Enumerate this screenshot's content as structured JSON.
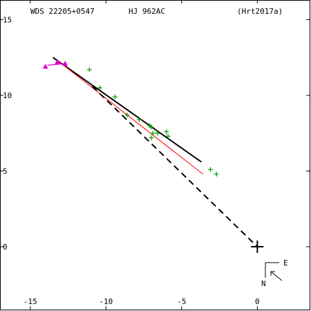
{
  "header": {
    "wds": "WDS 22205+0547",
    "pair": "HJ  962AC",
    "ref": "(Hrt2017a)"
  },
  "chart_data": {
    "type": "scatter",
    "title": "",
    "xlabel": "",
    "ylabel": "",
    "xlim": [
      -17.0,
      3.5
    ],
    "ylim": [
      -4.2,
      16.3
    ],
    "x_inverted": false,
    "x_ticks": [
      -15,
      -10,
      -5,
      0
    ],
    "y_ticks": [
      15,
      10,
      5,
      0
    ],
    "grid": false,
    "origin_star": {
      "x": 0,
      "y": 0
    },
    "orientation": {
      "east_label": "E",
      "north_label": "N"
    },
    "series": [
      {
        "kind": "observations",
        "marker": "plus",
        "color": "#009900",
        "points": [
          [
            -11.1,
            11.7
          ],
          [
            -10.4,
            10.5
          ],
          [
            -9.4,
            9.9
          ],
          [
            -8.6,
            8.7
          ],
          [
            -7.8,
            8.4
          ],
          [
            -7.1,
            8.0
          ],
          [
            -7.0,
            7.9
          ],
          [
            -6.9,
            7.5
          ],
          [
            -6.6,
            7.5
          ],
          [
            -6.0,
            7.6
          ],
          [
            -5.9,
            7.3
          ],
          [
            -3.1,
            5.1
          ],
          [
            -2.7,
            4.8
          ],
          [
            -7.0,
            7.2
          ]
        ]
      },
      {
        "kind": "recent-measurements",
        "marker": "triangle",
        "color": "#dd00dd",
        "points": [
          [
            -14.0,
            11.9
          ],
          [
            -13.2,
            12.2
          ],
          [
            -12.7,
            12.1
          ]
        ]
      },
      {
        "kind": "linear-fit",
        "line": "solid",
        "color": "#000000",
        "from": [
          -13.5,
          12.5
        ],
        "to": [
          -3.7,
          5.6
        ]
      },
      {
        "kind": "ephemeris",
        "line": "solid",
        "color": "#ff0000",
        "from": [
          -13.2,
          12.3
        ],
        "to": [
          -3.6,
          4.8
        ]
      },
      {
        "kind": "closest-approach",
        "line": "dashed",
        "color": "#000000",
        "from": [
          -10.9,
          10.6
        ],
        "to": [
          0,
          0
        ]
      }
    ]
  }
}
